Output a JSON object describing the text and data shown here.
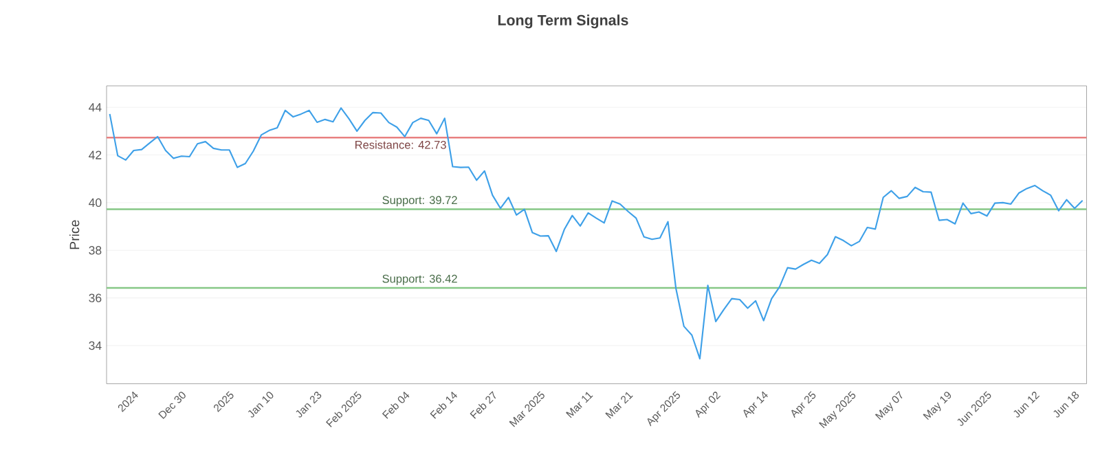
{
  "chart_data": {
    "type": "line",
    "title": "Long Term Signals",
    "ylabel": "Price",
    "categories": [
      null,
      null,
      null,
      "2024",
      null,
      null,
      null,
      null,
      null,
      "Dec 30",
      null,
      null,
      null,
      null,
      null,
      "2025",
      null,
      null,
      null,
      null,
      "Jan 10",
      null,
      null,
      null,
      null,
      null,
      "Jan 23",
      null,
      null,
      null,
      null,
      "Feb 2025",
      null,
      null,
      null,
      null,
      null,
      "Feb 04",
      null,
      null,
      null,
      null,
      null,
      "Feb 14",
      null,
      null,
      null,
      null,
      "Feb 27",
      null,
      null,
      null,
      null,
      null,
      "Mar 2025",
      null,
      null,
      null,
      null,
      null,
      "Mar 11",
      null,
      null,
      null,
      null,
      "Mar 21",
      null,
      null,
      null,
      null,
      null,
      "Apr 2025",
      null,
      null,
      null,
      null,
      "Apr 02",
      null,
      null,
      null,
      null,
      null,
      "Apr 14",
      null,
      null,
      null,
      null,
      null,
      "Apr 25",
      null,
      null,
      null,
      null,
      "May 2025",
      null,
      null,
      null,
      null,
      null,
      "May 07",
      null,
      null,
      null,
      null,
      null,
      "May 19",
      null,
      null,
      null,
      null,
      "Jun 2025",
      null,
      null,
      null,
      null,
      null,
      "Jun 12",
      null,
      null,
      null,
      null,
      "Jun 18",
      null
    ],
    "series": [
      {
        "color": "#3ea0e8",
        "values": [
          43.72,
          41.97,
          41.79,
          42.19,
          42.23,
          42.5,
          42.77,
          42.19,
          41.86,
          41.95,
          41.93,
          42.47,
          42.56,
          42.28,
          42.21,
          42.21,
          41.48,
          41.64,
          42.16,
          42.84,
          43.03,
          43.14,
          43.87,
          43.6,
          43.72,
          43.87,
          43.37,
          43.49,
          43.39,
          43.97,
          43.52,
          43.0,
          43.45,
          43.78,
          43.76,
          43.36,
          43.17,
          42.77,
          43.36,
          43.54,
          43.45,
          42.89,
          43.54,
          41.51,
          41.48,
          41.49,
          40.94,
          41.33,
          40.31,
          39.76,
          40.22,
          39.48,
          39.72,
          38.74,
          38.6,
          38.61,
          37.95,
          38.87,
          39.46,
          39.02,
          39.57,
          39.35,
          39.15,
          40.07,
          39.94,
          39.63,
          39.35,
          38.56,
          38.46,
          38.52,
          39.2,
          36.4,
          34.81,
          34.44,
          33.45,
          36.53,
          35.01,
          35.51,
          35.97,
          35.93,
          35.57,
          35.88,
          35.05,
          35.97,
          36.47,
          37.27,
          37.21,
          37.41,
          37.58,
          37.45,
          37.82,
          38.57,
          38.41,
          38.19,
          38.37,
          38.96,
          38.89,
          40.22,
          40.5,
          40.18,
          40.26,
          40.64,
          40.46,
          40.44,
          39.26,
          39.29,
          39.11,
          39.98,
          39.54,
          39.61,
          39.44,
          39.98,
          40.0,
          39.94,
          40.4,
          40.59,
          40.72,
          40.5,
          40.31,
          39.66,
          40.12,
          39.76,
          40.09
        ]
      }
    ],
    "ylim": [
      32.4,
      44.9
    ],
    "yticks": [
      34,
      36,
      38,
      40,
      42,
      44
    ],
    "grid": "y",
    "line_style": "solid",
    "ref_lines": [
      {
        "axis": "y",
        "value": 42.73,
        "label": "Resistance: 42.73",
        "color": "#e88080"
      },
      {
        "axis": "y",
        "value": 39.72,
        "label": "Support: 39.72",
        "color": "#86c786"
      },
      {
        "axis": "y",
        "value": 36.42,
        "label": "Support: 36.42",
        "color": "#86c786"
      }
    ]
  }
}
